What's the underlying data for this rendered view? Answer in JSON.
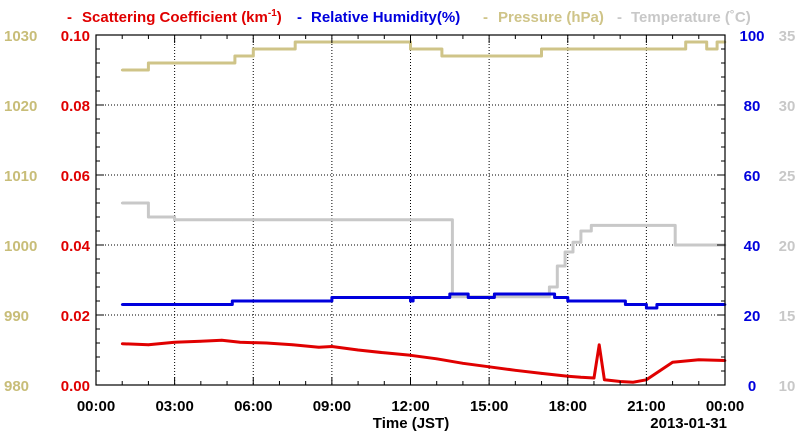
{
  "chart_data": {
    "type": "line",
    "legend": [
      {
        "text": "Scattering Coefficient (km",
        "sup": "-1",
        "close": ")",
        "color": "#e00000"
      },
      {
        "text": "Relative Humidity(%)",
        "color": "#0000dd"
      },
      {
        "text": "Pressure (hPa)",
        "color": "#cfc488"
      },
      {
        "text": "Temperature (˚C)",
        "color": "#c8c8c8"
      }
    ],
    "dash": "-",
    "xlabel": "Time (JST)",
    "date_label": "2013-01-31",
    "xlim": [
      0,
      24
    ],
    "x_ticks": [
      {
        "v": 0,
        "label": "00:00"
      },
      {
        "v": 3,
        "label": "03:00"
      },
      {
        "v": 6,
        "label": "06:00"
      },
      {
        "v": 9,
        "label": "09:00"
      },
      {
        "v": 12,
        "label": "12:00"
      },
      {
        "v": 15,
        "label": "15:00"
      },
      {
        "v": 18,
        "label": "18:00"
      },
      {
        "v": 21,
        "label": "21:00"
      },
      {
        "v": 24,
        "label": "00:00"
      }
    ],
    "grid": true,
    "axes": {
      "scattering": {
        "lim": [
          0,
          0.1
        ],
        "ticks": [
          "0.00",
          "0.02",
          "0.04",
          "0.06",
          "0.08",
          "0.10"
        ],
        "color": "#e00000"
      },
      "pressure": {
        "lim": [
          980,
          1030
        ],
        "ticks": [
          "980",
          "990",
          "1000",
          "1010",
          "1020",
          "1030"
        ],
        "color": "#c8bd78"
      },
      "humidity": {
        "lim": [
          0,
          100
        ],
        "ticks": [
          "0",
          "20",
          "40",
          "60",
          "80",
          "100"
        ],
        "color": "#0000dd"
      },
      "temperature": {
        "lim": [
          10,
          35
        ],
        "ticks": [
          "10",
          "15",
          "20",
          "25",
          "30",
          "35"
        ],
        "color": "#c8c8c8"
      }
    },
    "series": [
      {
        "name": "Scattering Coefficient",
        "axis": "scattering",
        "color": "#e00000",
        "shape": "line",
        "x": [
          1.0,
          2.0,
          3.0,
          4.0,
          4.8,
          5.5,
          6.5,
          7.5,
          8.5,
          9.0,
          10.0,
          11.0,
          12.0,
          13.0,
          14.0,
          15.0,
          16.0,
          17.0,
          18.0,
          18.5,
          19.0,
          19.2,
          19.4,
          20.0,
          20.5,
          21.0,
          21.5,
          22.0,
          23.0,
          24.0
        ],
        "y": [
          0.0118,
          0.0115,
          0.0122,
          0.0125,
          0.0128,
          0.0122,
          0.012,
          0.0115,
          0.0108,
          0.011,
          0.01,
          0.0092,
          0.0085,
          0.0075,
          0.0062,
          0.0052,
          0.0042,
          0.0033,
          0.0025,
          0.0022,
          0.002,
          0.0115,
          0.0015,
          0.001,
          0.0008,
          0.0015,
          0.004,
          0.0065,
          0.0072,
          0.007
        ]
      },
      {
        "name": "Relative Humidity",
        "axis": "humidity",
        "color": "#0000dd",
        "shape": "step",
        "x": [
          1.0,
          5.2,
          9.0,
          11.9,
          12.0,
          12.1,
          13.0,
          13.5,
          14.2,
          15.2,
          17.5,
          18.0,
          20.2,
          21.0,
          21.4,
          24.0
        ],
        "y": [
          23,
          24,
          25,
          25,
          24,
          25,
          25,
          26,
          25,
          26,
          25,
          24,
          23,
          22,
          23,
          23
        ]
      },
      {
        "name": "Pressure",
        "axis": "pressure",
        "color": "#cfc488",
        "shape": "step",
        "x": [
          1.0,
          2.0,
          4.0,
          5.3,
          6.0,
          7.3,
          7.6,
          12.0,
          13.2,
          14.5,
          16.3,
          17.0,
          22.0,
          22.5,
          23.3,
          23.7,
          24.0
        ],
        "y": [
          1025,
          1026,
          1026,
          1027,
          1028,
          1028,
          1029,
          1028,
          1027,
          1027,
          1027,
          1028,
          1028,
          1029,
          1028,
          1029,
          1029
        ]
      },
      {
        "name": "Temperature",
        "axis": "temperature",
        "color": "#c8c8c8",
        "shape": "step",
        "x": [
          1.0,
          2.0,
          3.0,
          4.2,
          5.2,
          13.6,
          16.0,
          17.3,
          17.6,
          17.9,
          18.2,
          18.5,
          18.9,
          22.1,
          24.0
        ],
        "y": [
          23.0,
          22.0,
          21.8,
          21.8,
          21.8,
          16.3,
          16.3,
          17.0,
          18.5,
          19.5,
          20.2,
          21.0,
          21.4,
          20.0,
          20.0
        ]
      }
    ]
  }
}
